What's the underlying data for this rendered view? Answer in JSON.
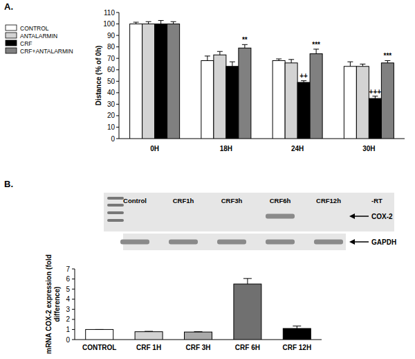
{
  "chart_data": [
    {
      "type": "bar",
      "title": "A.",
      "categories": [
        "0H",
        "18H",
        "24H",
        "30H"
      ],
      "series": [
        {
          "name": "CONTROL",
          "color": "#ffffff",
          "values": [
            100,
            68,
            68,
            63
          ],
          "errors": [
            1.5,
            4,
            1.5,
            4
          ]
        },
        {
          "name": "ANTALARMIN",
          "color": "#d3d3d3",
          "values": [
            100,
            73,
            66,
            63
          ],
          "errors": [
            2,
            3,
            3,
            2
          ]
        },
        {
          "name": "CRF",
          "color": "#000000",
          "values": [
            100,
            63,
            49,
            35
          ],
          "errors": [
            3,
            4,
            1.5,
            2
          ]
        },
        {
          "name": "CRF+ANTALARMIN",
          "color": "#808080",
          "values": [
            100,
            79,
            74,
            66
          ],
          "errors": [
            2,
            3,
            4,
            2
          ]
        }
      ],
      "y_label": "Distance (% of 0h)",
      "ylim": [
        0,
        110
      ],
      "yticks": [
        0,
        10,
        20,
        30,
        40,
        50,
        60,
        70,
        80,
        90,
        100,
        110
      ],
      "legend": "left",
      "annotations": [
        {
          "text": "**",
          "category": "18H",
          "series": "CRF+ANTALARMIN"
        },
        {
          "text": "++",
          "category": "24H",
          "series": "CRF"
        },
        {
          "text": "***",
          "category": "24H",
          "series": "CRF+ANTALARMIN"
        },
        {
          "text": "+++",
          "category": "30H",
          "series": "CRF"
        },
        {
          "text": "***",
          "category": "30H",
          "series": "CRF+ANTALARMIN"
        }
      ]
    },
    {
      "type": "bar",
      "categories": [
        "CONTROL",
        "CRF 1H",
        "CRF 3H",
        "CRF 6H",
        "CRF 12H"
      ],
      "values": [
        1,
        0.78,
        0.75,
        5.5,
        1.1
      ],
      "errors": [
        0,
        0.04,
        0.04,
        0.55,
        0.25
      ],
      "colors": [
        "#ffffff",
        "#d3d3d3",
        "#a9a9a9",
        "#707070",
        "#000000"
      ],
      "y_label": "mRNA COX-2 expression (fold difference)",
      "ylim": [
        0,
        7
      ],
      "yticks": [
        0,
        1,
        2,
        3,
        4,
        5,
        6,
        7
      ]
    }
  ],
  "gel": {
    "panel": "B.",
    "lanes": [
      "Control",
      "CRF1h",
      "CRF3h",
      "CRF6h",
      "CRF12h",
      "-RT"
    ],
    "rows": [
      {
        "label": "COX-2",
        "bands": [
          false,
          false,
          false,
          true,
          false,
          false
        ]
      },
      {
        "label": "GAPDH",
        "bands": [
          true,
          true,
          true,
          true,
          true,
          false
        ]
      }
    ]
  }
}
